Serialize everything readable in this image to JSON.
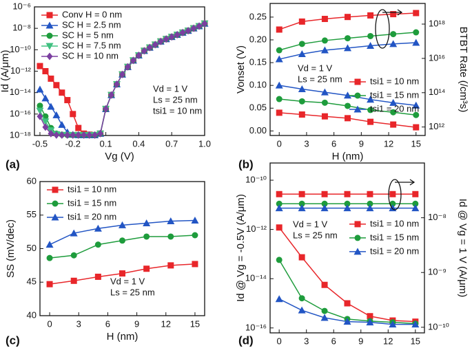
{
  "chart_data": [
    {
      "type": "line",
      "panel_label": "(a)",
      "xlabel": "Vg (V)",
      "ylabel": "Id (A/μm)",
      "yscale": "log",
      "legend": "upper left",
      "annotations": [
        "Vd = 1 V",
        "Ls = 25 nm",
        "tsi1 = 10 nm"
      ],
      "x": [
        -0.5,
        -0.45,
        -0.4,
        -0.35,
        -0.3,
        -0.25,
        -0.2,
        -0.15,
        -0.1,
        -0.05,
        0,
        0.05,
        0.1,
        0.15,
        0.2,
        0.25,
        0.3,
        0.35,
        0.4,
        0.45,
        0.5,
        0.55,
        0.6,
        0.65,
        0.7,
        0.75,
        0.8,
        0.85,
        0.9,
        0.95,
        1.0
      ],
      "xlim": [
        -0.55,
        1.0
      ],
      "xticks": [
        -0.5,
        -0.2,
        0.1,
        0.4,
        0.7,
        {
          "value": 1.0,
          "label": "1.0"
        }
      ],
      "ylim": [
        1e-18,
        1e-06
      ],
      "yticks": [
        {
          "value": 1e-18,
          "label": "10⁻¹⁸"
        },
        {
          "value": 1e-16,
          "label": "10⁻¹⁶"
        },
        {
          "value": 1e-14,
          "label": "10⁻¹⁴"
        },
        {
          "value": 1e-12,
          "label": "10⁻¹²"
        },
        {
          "value": 1e-10,
          "label": "10⁻¹⁰"
        },
        {
          "value": 1e-08,
          "label": "10⁻⁸"
        },
        {
          "value": 1e-06,
          "label": "10⁻⁶"
        }
      ],
      "series": [
        {
          "name": "Conv H = 0 nm",
          "color": "#e8262a",
          "marker": "square",
          "values": [
            3e-12,
            1e-12,
            2e-13,
            5e-14,
            1e-14,
            2e-15,
            1e-16,
            5e-18,
            1.5e-18,
            1.2e-18,
            1.1e-18,
            1.5e-18,
            3e-16,
            6e-15,
            6e-14,
            5e-13,
            2.5e-12,
            1e-11,
            3e-11,
            8e-11,
            1.6e-10,
            3e-10,
            6e-10,
            1e-09,
            1.6e-09,
            2.5e-09,
            4e-09,
            6e-09,
            1e-08,
            1.6e-08,
            2.8e-08
          ]
        },
        {
          "name": "SC H = 2.5 nm",
          "color": "#2255c4",
          "marker": "triangle",
          "values": [
            2e-14,
            3e-15,
            5e-16,
            8e-17,
            1e-17,
            2e-18,
            1.2e-18,
            1.1e-18,
            1.1e-18,
            1.1e-18,
            1.1e-18,
            1.5e-18,
            3e-16,
            6e-15,
            6e-14,
            5e-13,
            2.5e-12,
            1e-11,
            3e-11,
            8e-11,
            1.6e-10,
            3e-10,
            6e-10,
            1e-09,
            1.6e-09,
            2.5e-09,
            4e-09,
            6e-09,
            1e-08,
            1.6e-08,
            2.8e-08
          ]
        },
        {
          "name": "SC H = 5 nm",
          "color": "#1e9c3c",
          "marker": "circle",
          "values": [
            6e-16,
            6e-17,
            5e-18,
            1.5e-18,
            1.2e-18,
            1.1e-18,
            1.1e-18,
            1.1e-18,
            1.1e-18,
            1.1e-18,
            1.1e-18,
            1.5e-18,
            3e-16,
            6e-15,
            6e-14,
            5e-13,
            2.5e-12,
            1e-11,
            3e-11,
            8e-11,
            1.6e-10,
            3e-10,
            6e-10,
            1e-09,
            1.6e-09,
            2.5e-09,
            4e-09,
            6e-09,
            1e-08,
            1.6e-08,
            2.8e-08
          ]
        },
        {
          "name": "SC H = 7.5 nm",
          "color": "#40c080",
          "marker": "triangle-down",
          "values": [
            2e-16,
            2e-17,
            3e-18,
            1.3e-18,
            1.1e-18,
            1.1e-18,
            1.1e-18,
            1.1e-18,
            1.1e-18,
            1.1e-18,
            1.1e-18,
            1.5e-18,
            3e-16,
            6e-15,
            6e-14,
            5e-13,
            2.5e-12,
            1e-11,
            3e-11,
            8e-11,
            1.6e-10,
            3e-10,
            6e-10,
            1e-09,
            1.6e-09,
            2.5e-09,
            4e-09,
            6e-09,
            1e-08,
            1.6e-08,
            2.8e-08
          ]
        },
        {
          "name": "SC H = 10 nm",
          "color": "#7b3fa0",
          "marker": "diamond",
          "values": [
            6e-17,
            6e-18,
            1.5e-18,
            1.1e-18,
            1.1e-18,
            1.1e-18,
            1.1e-18,
            1.1e-18,
            1.1e-18,
            1.1e-18,
            1.1e-18,
            1.5e-18,
            3e-16,
            6e-15,
            6e-14,
            5e-13,
            2.5e-12,
            1e-11,
            3e-11,
            8e-11,
            1.6e-10,
            3e-10,
            6e-10,
            1e-09,
            1.6e-09,
            2.5e-09,
            4e-09,
            6e-09,
            1e-08,
            1.6e-08,
            2.8e-08
          ]
        }
      ]
    },
    {
      "type": "line",
      "panel_label": "(b)",
      "xlabel": "H (nm)",
      "ylabel": "Vonset (V)",
      "y2label": "BTBT Rate (/cm³s)",
      "y2scale": "log",
      "legend": "lower right",
      "annotations": [
        "Vd = 1 V",
        "Ls = 25 nm"
      ],
      "x": [
        0,
        2.5,
        5,
        7.5,
        10,
        12.5,
        15
      ],
      "xlim": [
        -1,
        16
      ],
      "xticks": [
        0,
        3,
        6,
        9,
        12,
        15
      ],
      "ylim": [
        -0.01,
        0.28
      ],
      "yticks": [
        {
          "value": 0,
          "label": "0.00"
        },
        {
          "value": 0.05,
          "label": "0.05"
        },
        {
          "value": 0.1,
          "label": "0.10"
        },
        {
          "value": 0.15,
          "label": "0.15"
        },
        {
          "value": 0.2,
          "label": "0.20"
        },
        {
          "value": 0.25,
          "label": "0.25"
        }
      ],
      "y2lim": [
        320000000000.0,
        1.6e+19
      ],
      "y2ticks": [
        {
          "value": 1000000000000.0,
          "label": "10¹²"
        },
        {
          "value": 100000000000000.0,
          "label": "10¹⁴"
        },
        {
          "value": 1e+16,
          "label": "10¹⁶"
        },
        {
          "value": 1e+18,
          "label": "10¹⁸"
        }
      ],
      "series": [
        {
          "name": "tsi1 = 10 nm",
          "color": "#e8262a",
          "marker": "square",
          "values": [
            0.04,
            0.036,
            0.032,
            0.028,
            0.02,
            0.014,
            0.008
          ]
        },
        {
          "name": "tsi1 = 15 nm",
          "color": "#1e9c3c",
          "marker": "circle",
          "values": [
            0.07,
            0.065,
            0.062,
            0.055,
            0.046,
            0.041,
            0.035
          ]
        },
        {
          "name": "tsi1 = 20 nm",
          "color": "#2255c4",
          "marker": "triangle",
          "values": [
            0.1,
            0.092,
            0.085,
            0.078,
            0.069,
            0.062,
            0.056
          ]
        },
        {
          "color": "#e8262a",
          "marker": "square",
          "axis": "y2",
          "values": [
            4.8e+17,
            1.4e+18,
            2e+18,
            2.6e+18,
            3.2e+18,
            3.8e+18,
            4.4e+18
          ]
        },
        {
          "color": "#1e9c3c",
          "marker": "circle",
          "axis": "y2",
          "values": [
            3e+16,
            7e+16,
            1.1e+17,
            1.5e+17,
            2e+17,
            2.6e+17,
            3.3e+17
          ]
        },
        {
          "color": "#2255c4",
          "marker": "triangle",
          "axis": "y2",
          "values": [
            9000000000000000.0,
            1.8e+16,
            3e+16,
            4e+16,
            5.5e+16,
            7e+16,
            8.3e+16
          ]
        }
      ]
    },
    {
      "type": "line",
      "panel_label": "(c)",
      "xlabel": "H (nm)",
      "ylabel": "SS (mV/dec)",
      "legend": "upper left",
      "annotations": [
        "Vd = 1 V",
        "Ls = 25 nm"
      ],
      "x": [
        0,
        2.5,
        5,
        7.5,
        10,
        12.5,
        15
      ],
      "xlim": [
        -1,
        16
      ],
      "xticks": [
        0,
        3,
        6,
        9,
        12,
        15
      ],
      "ylim": [
        40,
        60
      ],
      "yticks": [
        40,
        45,
        50,
        55,
        60
      ],
      "series": [
        {
          "name": "tsi1 = 10 nm",
          "color": "#e8262a",
          "marker": "square",
          "values": [
            44.7,
            45.2,
            45.8,
            46.3,
            47.0,
            47.5,
            47.7
          ]
        },
        {
          "name": "tsi1 = 15 nm",
          "color": "#1e9c3c",
          "marker": "circle",
          "values": [
            48.6,
            49.0,
            50.6,
            51.2,
            51.8,
            51.8,
            52.0
          ]
        },
        {
          "name": "tsi1 = 20 nm",
          "color": "#2255c4",
          "marker": "triangle",
          "values": [
            50.6,
            52.3,
            53.0,
            53.5,
            53.8,
            54.1,
            54.2
          ]
        }
      ]
    },
    {
      "type": "line",
      "panel_label": "(d)",
      "xlabel": "H (nm)",
      "ylabel": "Id @ Vg = -0.5V (A/μm)",
      "y2label": "Id @ Vg = 1 V (A/μm)",
      "yscale": "log",
      "y2scale": "log",
      "legend": "center right",
      "annotations": [
        "Vd = 1 V",
        "Ls = 25 nm"
      ],
      "x": [
        0,
        2.5,
        5,
        7.5,
        10,
        12.5,
        15
      ],
      "xlim": [
        -1,
        16
      ],
      "xticks": [
        0,
        3,
        6,
        9,
        12,
        15
      ],
      "ylim": [
        6.3e-17,
        5e-10
      ],
      "yticks": [
        {
          "value": 1e-16,
          "label": "10⁻¹⁶"
        },
        {
          "value": 1e-14,
          "label": "10⁻¹⁴"
        },
        {
          "value": 1e-12,
          "label": "10⁻¹²"
        },
        {
          "value": 1e-10,
          "label": "10⁻¹⁰"
        }
      ],
      "y2lim": [
        7.9e-11,
        1e-07
      ],
      "y2ticks": [
        {
          "value": 1e-10,
          "label": "10⁻¹⁰"
        },
        {
          "value": 1e-09,
          "label": "10⁻⁹"
        },
        {
          "value": 1e-08,
          "label": "10⁻⁸"
        }
      ],
      "series": [
        {
          "name": "tsi1 = 10 nm",
          "color": "#e8262a",
          "marker": "square",
          "values": [
            1.2e-12,
            7.4e-14,
            5.6e-15,
            1e-15,
            3e-16,
            2e-16,
            1.8e-16
          ]
        },
        {
          "name": "tsi1 = 15 nm",
          "color": "#1e9c3c",
          "marker": "circle",
          "values": [
            5.8e-14,
            1.6e-15,
            4.9e-16,
            2.3e-16,
            1.9e-16,
            1.7e-16,
            1.5e-16
          ]
        },
        {
          "name": "tsi1 = 20 nm",
          "color": "#2255c4",
          "marker": "triangle",
          "values": [
            1.5e-15,
            5.2e-16,
            2.6e-16,
            1.8e-16,
            1.7e-16,
            1.4e-16,
            1.4e-16
          ]
        },
        {
          "color": "#e8262a",
          "marker": "square",
          "axis": "y2",
          "values": [
            2.7e-08,
            2.7e-08,
            2.7e-08,
            2.7e-08,
            2.7e-08,
            2.7e-08,
            2.7e-08
          ]
        },
        {
          "color": "#1e9c3c",
          "marker": "circle",
          "axis": "y2",
          "values": [
            1.8e-08,
            1.8e-08,
            1.8e-08,
            1.8e-08,
            1.8e-08,
            1.8e-08,
            1.8e-08
          ]
        },
        {
          "color": "#2255c4",
          "marker": "triangle",
          "axis": "y2",
          "values": [
            1.5e-08,
            1.5e-08,
            1.5e-08,
            1.5e-08,
            1.5e-08,
            1.5e-08,
            1.5e-08
          ]
        }
      ]
    }
  ]
}
